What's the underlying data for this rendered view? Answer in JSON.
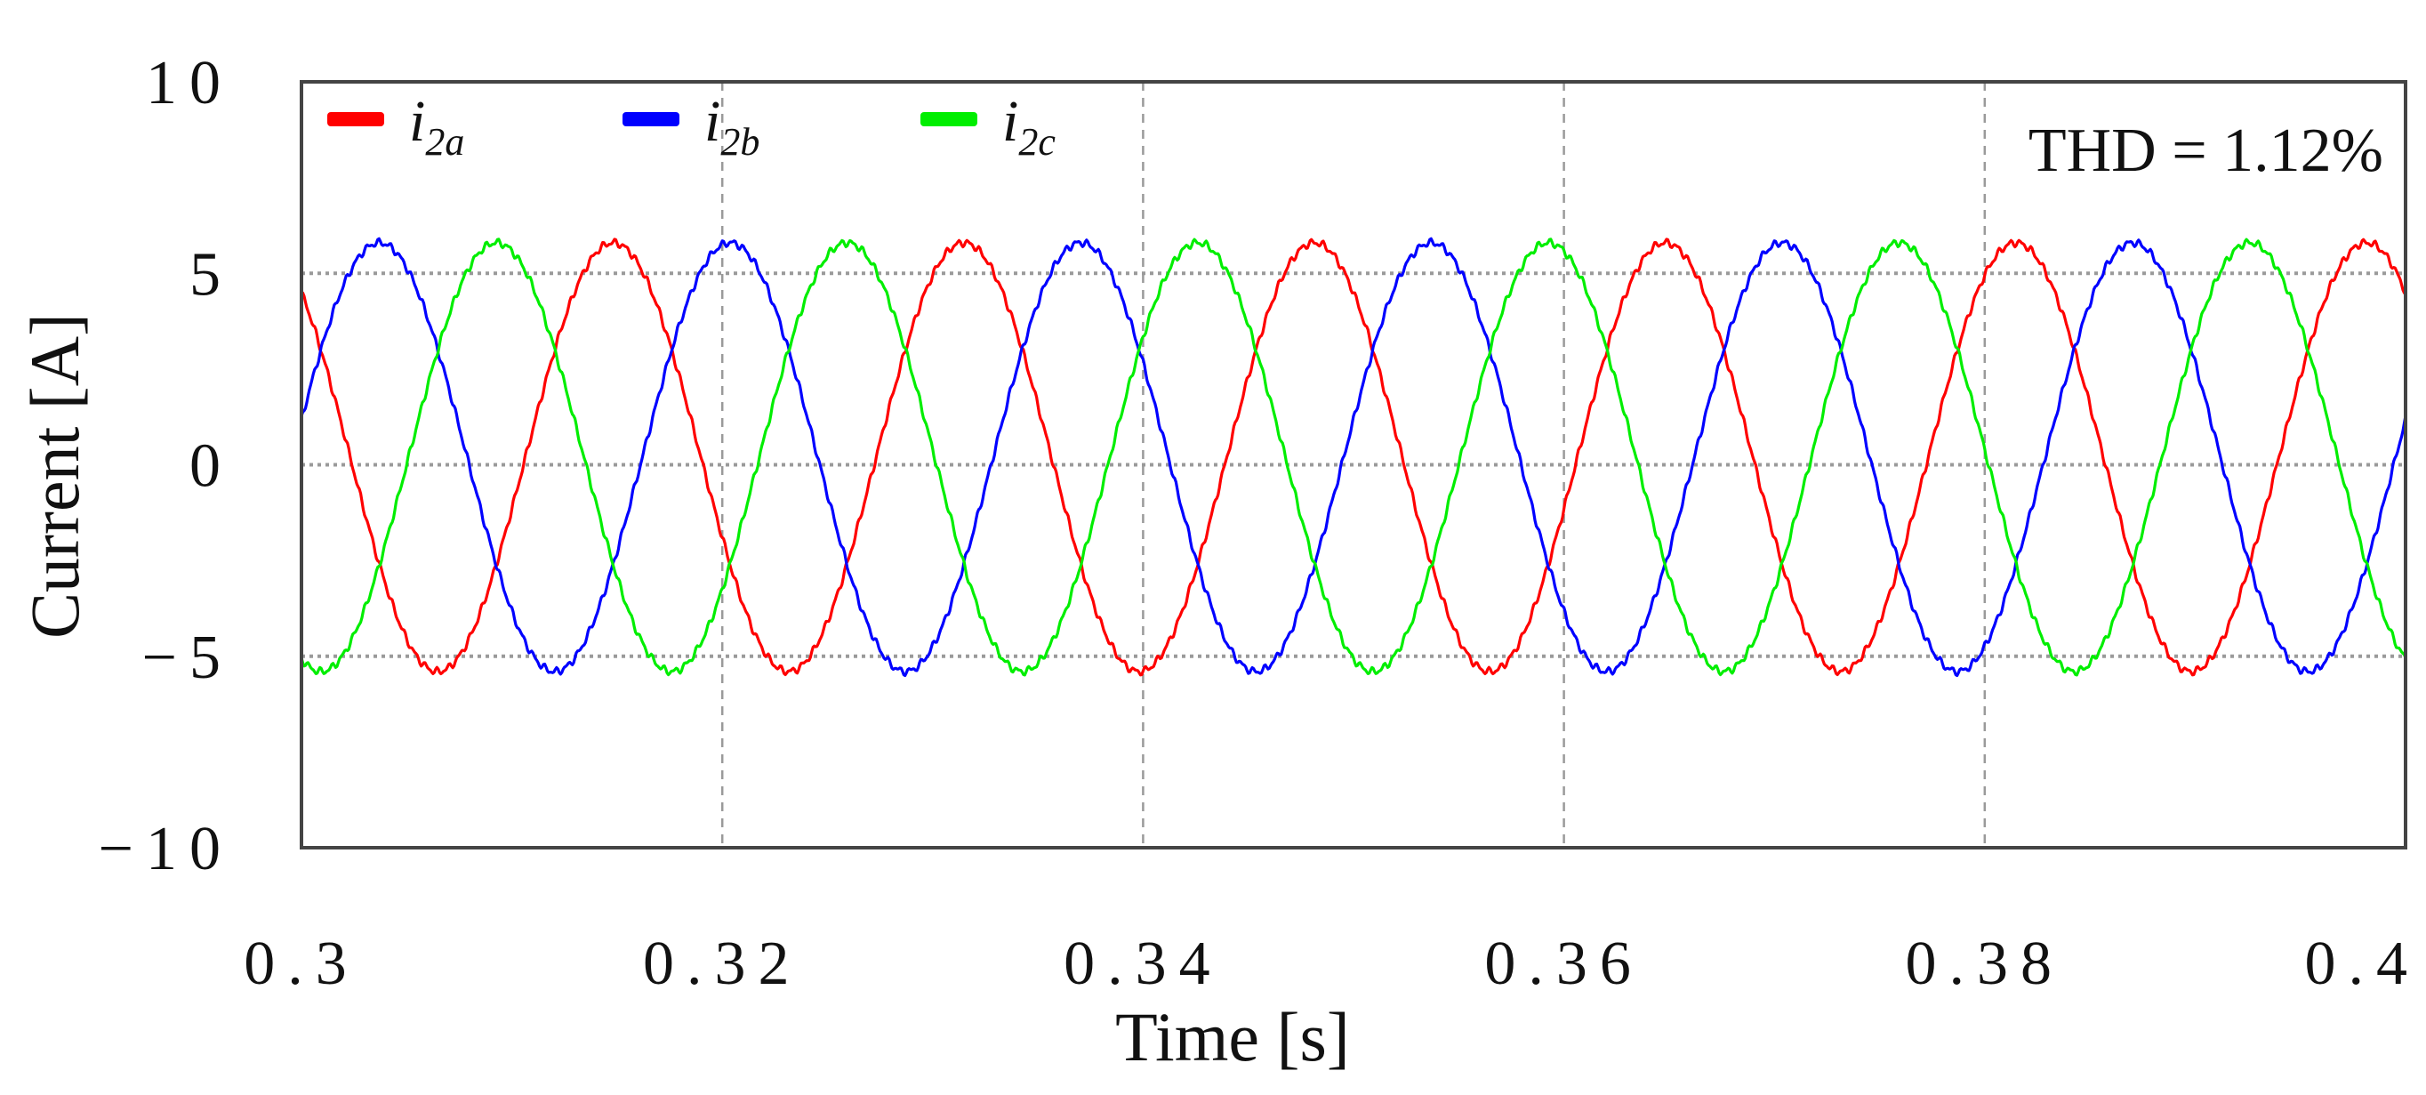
{
  "chart_data": {
    "type": "line",
    "title": "",
    "xlabel": "Time [s]",
    "ylabel": "Current [A]",
    "xlim": [
      0.3,
      0.4
    ],
    "ylim": [
      -10,
      10
    ],
    "x_ticks": [
      {
        "value": 0.3,
        "label": "0.3"
      },
      {
        "value": 0.32,
        "label": "0.32"
      },
      {
        "value": 0.34,
        "label": "0.34"
      },
      {
        "value": 0.36,
        "label": "0.36"
      },
      {
        "value": 0.38,
        "label": "0.38"
      },
      {
        "value": 0.4,
        "label": "0.4"
      }
    ],
    "y_ticks": [
      {
        "value": 10,
        "label": "10"
      },
      {
        "value": 5,
        "label": "5"
      },
      {
        "value": 0,
        "label": "0"
      },
      {
        "value": -5,
        "label": "−5"
      },
      {
        "value": -10,
        "label": "−10"
      }
    ],
    "grid": true,
    "grid_x": [
      0.32,
      0.34,
      0.36,
      0.38
    ],
    "grid_y": [
      5,
      0,
      -5
    ],
    "legend_position": "top-left",
    "annotation": "THD = 1.12%",
    "series": [
      {
        "name": "i2a",
        "symbol": "i",
        "subscript": "2a",
        "color": "#ff0000",
        "amplitude": 5.6,
        "offset": 0.2,
        "frequency_hz": 60,
        "phase_deg": 130
      },
      {
        "name": "i2b",
        "symbol": "i",
        "subscript": "2b",
        "color": "#0000ff",
        "amplitude": 5.6,
        "offset": 0.2,
        "frequency_hz": 60,
        "phase_deg": 10
      },
      {
        "name": "i2c",
        "symbol": "i",
        "subscript": "2c",
        "color": "#00ee00",
        "amplitude": 5.6,
        "offset": 0.2,
        "frequency_hz": 60,
        "phase_deg": 250
      }
    ]
  }
}
